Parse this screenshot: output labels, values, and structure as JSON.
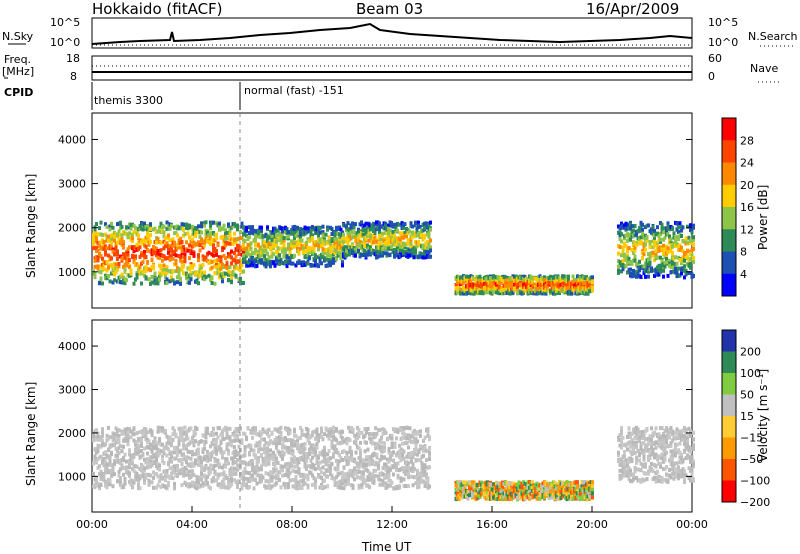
{
  "header": {
    "station": "Hokkaido (fitACF)",
    "beam": "Beam 03",
    "date": "16/Apr/2009"
  },
  "strip_panels": {
    "nsky_label": "N.Sky",
    "nsky_top": "10^5",
    "nsky_bottom": "10^0",
    "nsearch_label": "N.Search",
    "freq_label_1": "Freq.",
    "freq_label_2": "[MHz]",
    "freq_top": "18",
    "freq_bottom": "8",
    "nave_label": "Nave",
    "nave_top": "60",
    "nave_bottom": "0",
    "cpid_label": "CPID",
    "cpid_1": "themis 3300",
    "cpid_2": "normal (fast) -151"
  },
  "colors": {
    "accent_dashed": "#888888"
  },
  "chart_data": [
    {
      "type": "heatmap",
      "name": "power_panel",
      "xlabel": "",
      "ylabel": "Slant Range [km]",
      "xlim": [
        0,
        24
      ],
      "ylim": [
        180,
        4600
      ],
      "yticks": [
        1000,
        2000,
        3000,
        4000
      ],
      "colorbar": {
        "label": "Power [dB]",
        "ticks": [
          "28",
          "24",
          "20",
          "16",
          "12",
          "8",
          "4"
        ],
        "colors": [
          "#ff0000",
          "#ff4400",
          "#ff8800",
          "#ffcc00",
          "#8fc44a",
          "#2e8b57",
          "#1e50b4",
          "#0000ff"
        ]
      },
      "regions": [
        {
          "t0": 0.0,
          "t1": 6.0,
          "r0": 700,
          "r1": 2100,
          "level": "high"
        },
        {
          "t0": 6.0,
          "t1": 10.0,
          "r0": 1100,
          "r1": 2000,
          "level": "mid"
        },
        {
          "t0": 10.0,
          "t1": 13.5,
          "r0": 1300,
          "r1": 2100,
          "level": "mid"
        },
        {
          "t0": 14.5,
          "t1": 20.0,
          "r0": 480,
          "r1": 880,
          "level": "high"
        },
        {
          "t0": 21.0,
          "t1": 24.0,
          "r0": 850,
          "r1": 2100,
          "level": "mid"
        }
      ]
    },
    {
      "type": "heatmap",
      "name": "velocity_panel",
      "xlabel": "Time UT",
      "ylabel": "Slant Range [km]",
      "xlim": [
        0,
        24
      ],
      "ylim": [
        180,
        4600
      ],
      "yticks": [
        1000,
        2000,
        3000,
        4000
      ],
      "xticks": [
        "00:00",
        "04:00",
        "08:00",
        "12:00",
        "16:00",
        "20:00",
        "00:00"
      ],
      "colorbar": {
        "label": "Velocity [m s⁻¹]",
        "ticks": [
          "200",
          "100",
          "50",
          "15",
          "−15",
          "−50",
          "−100",
          "−200"
        ],
        "colors": [
          "#2233aa",
          "#2e8b57",
          "#7fcc3f",
          "#c0c0c0",
          "#ffcc33",
          "#ff9900",
          "#ff5500",
          "#ff0000"
        ]
      },
      "regions": [
        {
          "t0": 0.0,
          "t1": 13.5,
          "r0": 700,
          "r1": 2100,
          "level": "ground"
        },
        {
          "t0": 14.5,
          "t1": 20.0,
          "r0": 450,
          "r1": 850,
          "level": "mixed"
        },
        {
          "t0": 21.0,
          "t1": 24.0,
          "r0": 850,
          "r1": 2100,
          "level": "ground"
        }
      ]
    }
  ]
}
